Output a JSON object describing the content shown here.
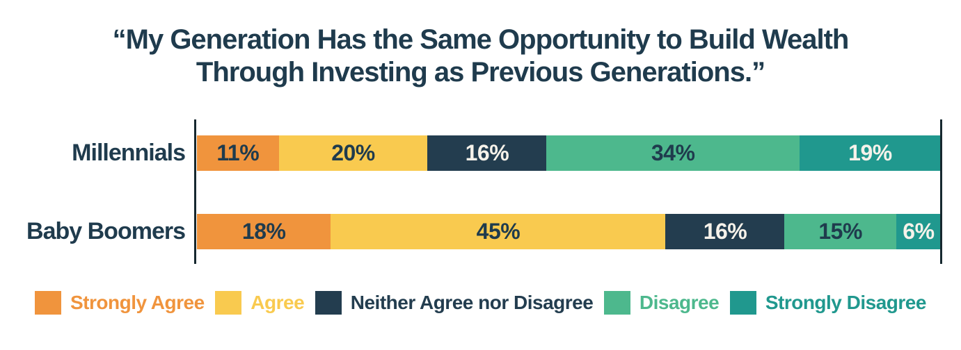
{
  "title": {
    "line1": "“My Generation Has the Same Opportunity to Build Wealth",
    "line2": "Through Investing as Previous Generations.”"
  },
  "chart_data": {
    "type": "bar",
    "variant": "horizontal-stacked",
    "title": "“My Generation Has the Same Opportunity to Build Wealth Through Investing as Previous Generations.”",
    "categories": [
      "Millennials",
      "Baby Boomers"
    ],
    "series": [
      {
        "name": "Strongly Agree",
        "color": "#F0943D",
        "label_color": "#1F3B4D",
        "values": [
          11,
          18
        ]
      },
      {
        "name": "Agree",
        "color": "#F9CA4F",
        "label_color": "#1F3B4D",
        "values": [
          20,
          45
        ]
      },
      {
        "name": "Neither Agree nor Disagree",
        "color": "#233D4F",
        "label_color": "#F6F2EA",
        "values": [
          16,
          16
        ]
      },
      {
        "name": "Disagree",
        "color": "#4DB88D",
        "label_color": "#1F3B4D",
        "values": [
          34,
          15
        ]
      },
      {
        "name": "Strongly Disagree",
        "color": "#20988E",
        "label_color": "#F6F2EA",
        "values": [
          19,
          6
        ]
      }
    ],
    "value_suffix": "%",
    "xlim": [
      0,
      100
    ],
    "grid": false,
    "legend_position": "bottom",
    "axis_color": "#16282F",
    "text_color": "#1F3B4D"
  }
}
